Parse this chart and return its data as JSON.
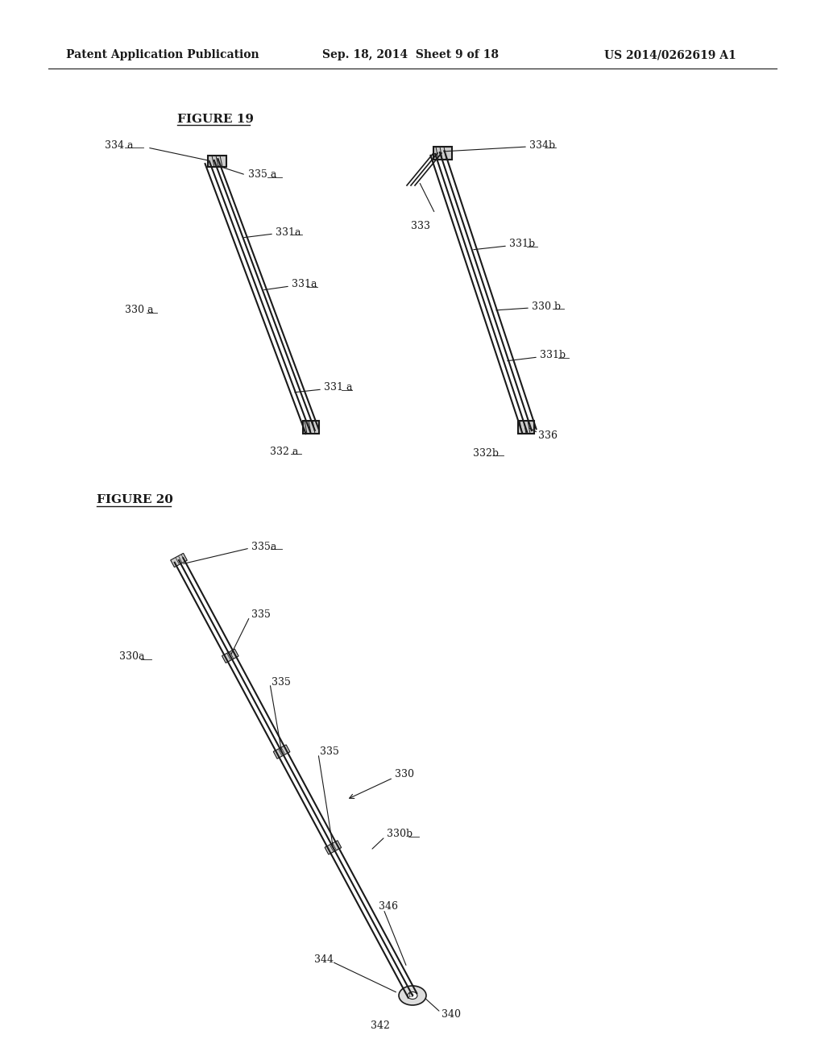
{
  "bg_color": "#ffffff",
  "header_left": "Patent Application Publication",
  "header_mid": "Sep. 18, 2014  Sheet 9 of 18",
  "header_right": "US 2014/0262619 A1",
  "fig19_title": "FIGURE 19",
  "fig20_title": "FIGURE 20",
  "line_color": "#1a1a1a",
  "line_width": 1.5,
  "thin_line": 0.8
}
